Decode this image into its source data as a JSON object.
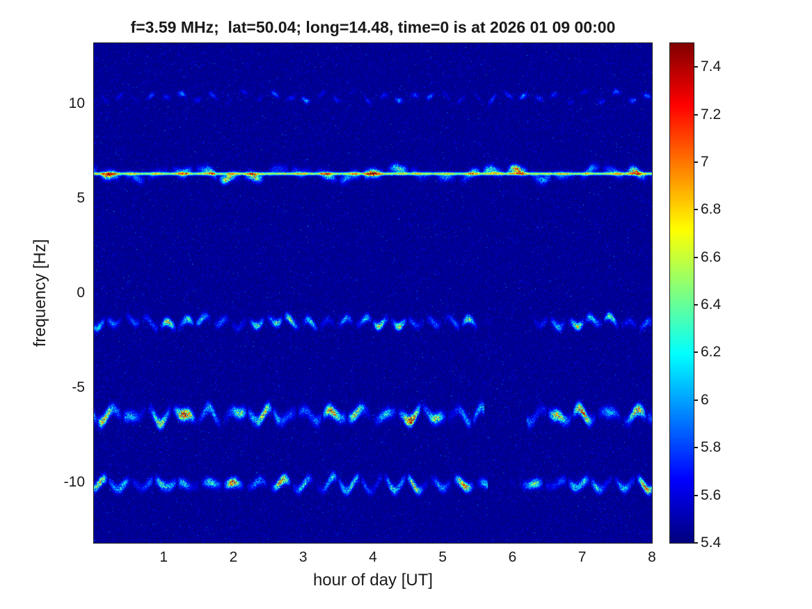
{
  "page": {
    "background": "#ffffff",
    "text_color": "#1a1a1a"
  },
  "chart_data": {
    "type": "heatmap",
    "title": "f=3.59 MHz;  lat=50.04; long=14.48, time=0 is at 2026 01 09 00:00",
    "xlabel": "hour of day [UT]",
    "ylabel": "frequency [Hz]",
    "xlim": [
      0,
      8
    ],
    "ylim": [
      -13.2,
      13.2
    ],
    "xticks": [
      1,
      2,
      3,
      4,
      5,
      6,
      7,
      8
    ],
    "xtick_labels": [
      "1",
      "2",
      "3",
      "4",
      "5",
      "6",
      "7",
      "8"
    ],
    "yticks": [
      10,
      5,
      0,
      -5,
      -10
    ],
    "ytick_labels": [
      "10",
      "5",
      "0",
      "-5",
      "-10"
    ],
    "grid": false,
    "legend": "none",
    "colormap": "jet",
    "colorbar": {
      "position": "right",
      "min": 5.4,
      "max": 7.5,
      "ticks": [
        7.4,
        7.2,
        7.0,
        6.8,
        6.6,
        6.4,
        6.2,
        6.0,
        5.8,
        5.6,
        5.4
      ],
      "tick_labels": [
        "7.4",
        "7.2",
        "7",
        "6.8",
        "6.6",
        "6.4",
        "6.2",
        "6",
        "5.8",
        "5.6",
        "5.4"
      ]
    },
    "background_level": 5.45,
    "noise_description": "dark-blue speckled noise floor between 5.4 and 5.6 over the whole plot",
    "traces": [
      {
        "label": "faint intermittent trace near +10.3 Hz",
        "freq": 10.35,
        "wiggle_amp": 0.4,
        "sigma": 0.09,
        "strength": 0.6,
        "patchy": 0.85,
        "gaps": [],
        "peak_value": 6.2
      },
      {
        "label": "strong wavy trace near +6.3 Hz with continuous narrow carrier line",
        "freq": 6.3,
        "wiggle_amp": 0.42,
        "sigma": 0.15,
        "strength": 1.5,
        "patchy": 0.3,
        "gaps": [],
        "carrier_line": true,
        "line_strength": 1.15,
        "peak_value": 7.2
      },
      {
        "label": "wavy trace near -1.5 Hz",
        "freq": -1.55,
        "wiggle_amp": 0.38,
        "sigma": 0.14,
        "strength": 1.35,
        "patchy": 0.3,
        "gaps": [
          [
            5.5,
            6.25
          ]
        ],
        "peak_value": 7.0
      },
      {
        "label": "strongest wavy trace near -6.4 Hz",
        "freq": -6.45,
        "wiggle_amp": 0.5,
        "sigma": 0.19,
        "strength": 1.8,
        "patchy": 0.2,
        "gaps": [
          [
            5.6,
            6.2
          ]
        ],
        "peak_value": 7.4
      },
      {
        "label": "wavy trace near -10.1 Hz",
        "freq": -10.1,
        "wiggle_amp": 0.42,
        "sigma": 0.16,
        "strength": 1.6,
        "patchy": 0.25,
        "gaps": [
          [
            5.65,
            6.1
          ]
        ],
        "peak_value": 7.3
      }
    ]
  }
}
